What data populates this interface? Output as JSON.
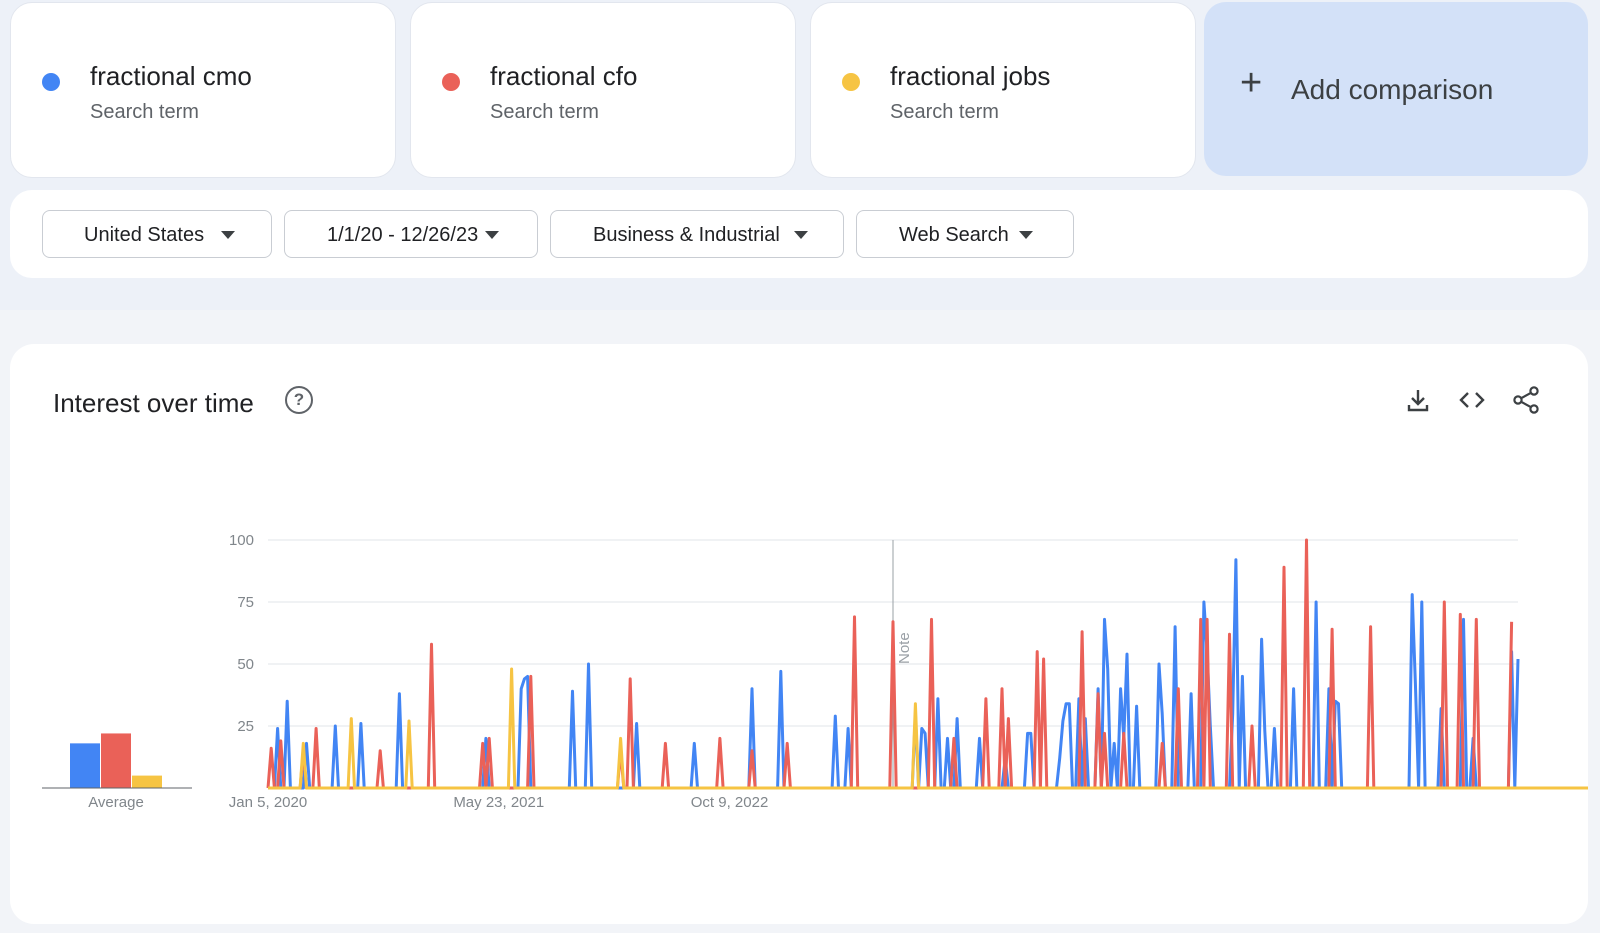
{
  "terms": [
    {
      "name": "fractional cmo",
      "sub": "Search term",
      "color": "#4285f4"
    },
    {
      "name": "fractional cfo",
      "sub": "Search term",
      "color": "#ea6158"
    },
    {
      "name": "fractional jobs",
      "sub": "Search term",
      "color": "#f6c443"
    }
  ],
  "add_comparison": {
    "label": "Add comparison",
    "icon": "plus-icon"
  },
  "filters": {
    "region": "United States",
    "date_range": "1/1/20 - 12/26/23",
    "category": "Business & Industrial",
    "search_type": "Web Search"
  },
  "interest": {
    "title": "Interest over time",
    "icons": [
      "help-icon",
      "download-icon",
      "embed-icon",
      "share-icon"
    ],
    "average_label": "Average",
    "note_label": "Note"
  },
  "chart_data": {
    "type": "line",
    "title": "Interest over time",
    "ylim": [
      0,
      100
    ],
    "yticks": [
      25,
      50,
      75,
      100
    ],
    "xtick_labels": [
      "Jan 5, 2020",
      "May 23, 2021",
      "Oct 9, 2022"
    ],
    "xtick_weeks": [
      0,
      72,
      144
    ],
    "grid": true,
    "averages": [
      {
        "name": "fractional cmo",
        "value": 18
      },
      {
        "name": "fractional cfo",
        "value": 22
      },
      {
        "name": "fractional jobs",
        "value": 5
      }
    ],
    "series": [
      {
        "name": "fractional cmo",
        "color": "#4285f4",
        "values": [
          0,
          0,
          0,
          24,
          0,
          0,
          35,
          0,
          0,
          0,
          0,
          0,
          18,
          0,
          0,
          0,
          0,
          0,
          0,
          0,
          0,
          25,
          0,
          0,
          0,
          0,
          0,
          0,
          0,
          26,
          0,
          0,
          0,
          0,
          0,
          0,
          0,
          0,
          0,
          0,
          0,
          38,
          0,
          0,
          0,
          0,
          0,
          0,
          0,
          0,
          0,
          0,
          0,
          0,
          0,
          0,
          0,
          0,
          0,
          0,
          0,
          0,
          0,
          0,
          0,
          0,
          0,
          0,
          20,
          0,
          0,
          0,
          0,
          0,
          0,
          0,
          0,
          0,
          0,
          40,
          44,
          45,
          0,
          0,
          0,
          0,
          0,
          0,
          0,
          0,
          0,
          0,
          0,
          0,
          0,
          39,
          0,
          0,
          0,
          0,
          50,
          0,
          0,
          0,
          0,
          0,
          0,
          0,
          0,
          0,
          0,
          0,
          0,
          0,
          0,
          26,
          0,
          0,
          0,
          0,
          0,
          0,
          0,
          0,
          0,
          0,
          0,
          0,
          0,
          0,
          0,
          0,
          0,
          18,
          0,
          0,
          0,
          0,
          0,
          0,
          0,
          0,
          0,
          0,
          0,
          0,
          0,
          0,
          0,
          0,
          0,
          40,
          0,
          0,
          0,
          0,
          0,
          0,
          0,
          0,
          47,
          0,
          0,
          0,
          0,
          0,
          0,
          0,
          0,
          0,
          0,
          0,
          0,
          0,
          0,
          0,
          0,
          29,
          0,
          0,
          0,
          24,
          0,
          0,
          0,
          0,
          0,
          0,
          0,
          0,
          0,
          0,
          0,
          0,
          0,
          0,
          0,
          0,
          0,
          0,
          0,
          0,
          30,
          0,
          24,
          22,
          0,
          0,
          0,
          36,
          0,
          0,
          20,
          0,
          0,
          28,
          0,
          0,
          0,
          0,
          0,
          0,
          20,
          0,
          0,
          0,
          0,
          0,
          0,
          0,
          12,
          0,
          0,
          0,
          0,
          0,
          0,
          22,
          22,
          0,
          0,
          0,
          0,
          0,
          0,
          0,
          0,
          12,
          27,
          34,
          34,
          0,
          0,
          36,
          0,
          28,
          0,
          0,
          0,
          40,
          0,
          68,
          48,
          0,
          18,
          0,
          40,
          20,
          54,
          0,
          0,
          33,
          0,
          0,
          0,
          0,
          0,
          0,
          50,
          30,
          0,
          0,
          0,
          65,
          0,
          0,
          0,
          0,
          38,
          0,
          0,
          0,
          75,
          55,
          25,
          0,
          0,
          0,
          0,
          0,
          0,
          30,
          92,
          0,
          45,
          0,
          0,
          0,
          0,
          0,
          60,
          23,
          0,
          0,
          24,
          0,
          0,
          0,
          0,
          0,
          40,
          0,
          0,
          0,
          0,
          0,
          0,
          75,
          0,
          0,
          0,
          40,
          0,
          35,
          34,
          0,
          0,
          0,
          0,
          0,
          0,
          0,
          0,
          0,
          0,
          0,
          0,
          0,
          0,
          0,
          0,
          0,
          0,
          0,
          0,
          0,
          0,
          78,
          42,
          0,
          75,
          0,
          0,
          0,
          0,
          0,
          32,
          0,
          0,
          0,
          0,
          0,
          0,
          68,
          0,
          0,
          20,
          0,
          0,
          0,
          0,
          0,
          0,
          0,
          0,
          0,
          0,
          0,
          55,
          0,
          52
        ]
      },
      {
        "name": "fractional cfo",
        "color": "#ea6158",
        "values": [
          0,
          16,
          0,
          0,
          19,
          0,
          0,
          0,
          0,
          0,
          0,
          15,
          0,
          0,
          0,
          24,
          0,
          0,
          0,
          0,
          0,
          0,
          0,
          0,
          0,
          0,
          0,
          0,
          0,
          0,
          0,
          0,
          0,
          0,
          0,
          15,
          0,
          0,
          0,
          0,
          0,
          0,
          0,
          0,
          0,
          0,
          0,
          0,
          0,
          0,
          0,
          58,
          0,
          0,
          0,
          0,
          0,
          0,
          0,
          0,
          0,
          0,
          0,
          0,
          0,
          0,
          0,
          18,
          0,
          20,
          0,
          0,
          0,
          0,
          0,
          0,
          0,
          0,
          0,
          0,
          0,
          0,
          45,
          0,
          0,
          0,
          0,
          0,
          0,
          0,
          0,
          0,
          0,
          0,
          0,
          0,
          0,
          0,
          0,
          0,
          0,
          0,
          0,
          0,
          0,
          0,
          0,
          0,
          0,
          0,
          15,
          0,
          0,
          44,
          0,
          0,
          0,
          0,
          0,
          0,
          0,
          0,
          0,
          0,
          18,
          0,
          0,
          0,
          0,
          0,
          0,
          0,
          0,
          0,
          0,
          0,
          0,
          0,
          0,
          0,
          0,
          20,
          0,
          0,
          0,
          0,
          0,
          0,
          0,
          0,
          0,
          15,
          0,
          0,
          0,
          0,
          0,
          0,
          0,
          0,
          0,
          0,
          18,
          0,
          0,
          0,
          0,
          0,
          0,
          0,
          0,
          0,
          0,
          0,
          0,
          0,
          0,
          0,
          0,
          0,
          0,
          0,
          0,
          69,
          0,
          0,
          0,
          0,
          0,
          0,
          0,
          0,
          0,
          0,
          0,
          67,
          0,
          0,
          0,
          0,
          0,
          0,
          0,
          0,
          0,
          0,
          0,
          68,
          0,
          0,
          0,
          0,
          0,
          0,
          20,
          0,
          0,
          0,
          0,
          0,
          0,
          0,
          0,
          0,
          36,
          0,
          0,
          0,
          0,
          40,
          0,
          28,
          0,
          0,
          0,
          0,
          0,
          0,
          0,
          0,
          55,
          0,
          52,
          0,
          0,
          0,
          0,
          0,
          0,
          0,
          0,
          0,
          0,
          0,
          63,
          0,
          0,
          0,
          0,
          38,
          0,
          22,
          0,
          0,
          0,
          0,
          0,
          22,
          0,
          0,
          0,
          0,
          0,
          0,
          0,
          0,
          0,
          0,
          0,
          18,
          0,
          0,
          0,
          0,
          40,
          0,
          0,
          0,
          0,
          0,
          0,
          68,
          0,
          68,
          0,
          0,
          0,
          0,
          0,
          0,
          62,
          0,
          0,
          0,
          0,
          0,
          0,
          25,
          0,
          0,
          0,
          0,
          0,
          0,
          0,
          0,
          0,
          89,
          0,
          0,
          0,
          0,
          0,
          0,
          100,
          0,
          0,
          0,
          0,
          0,
          0,
          0,
          64,
          0,
          0,
          0,
          0,
          0,
          0,
          0,
          0,
          0,
          0,
          0,
          65,
          0,
          0,
          0,
          0,
          0,
          0,
          0,
          0,
          0,
          0,
          0,
          0,
          0,
          0,
          0,
          0,
          0,
          0,
          0,
          0,
          0,
          0,
          75,
          0,
          0,
          0,
          0,
          70,
          0,
          0,
          0,
          0,
          68,
          0,
          0,
          0,
          0,
          0,
          0,
          0,
          0,
          0,
          0,
          67
        ]
      },
      {
        "name": "fractional jobs",
        "color": "#f6c443",
        "values": [
          0,
          0,
          0,
          0,
          0,
          0,
          0,
          0,
          0,
          0,
          0,
          18,
          0,
          0,
          0,
          0,
          0,
          0,
          0,
          0,
          0,
          0,
          0,
          0,
          0,
          0,
          28,
          0,
          0,
          0,
          0,
          0,
          0,
          0,
          0,
          0,
          0,
          0,
          0,
          0,
          0,
          0,
          0,
          0,
          27,
          0,
          0,
          0,
          0,
          0,
          0,
          0,
          0,
          0,
          0,
          0,
          0,
          0,
          0,
          0,
          0,
          0,
          0,
          0,
          0,
          0,
          0,
          0,
          0,
          0,
          0,
          0,
          0,
          0,
          0,
          0,
          48,
          0,
          0,
          0,
          0,
          0,
          0,
          0,
          0,
          0,
          0,
          0,
          0,
          0,
          0,
          0,
          0,
          0,
          0,
          0,
          0,
          0,
          0,
          0,
          0,
          0,
          0,
          0,
          0,
          0,
          0,
          0,
          0,
          0,
          20,
          0,
          0,
          0,
          0,
          0,
          0,
          0,
          0,
          0,
          0,
          0,
          0,
          0,
          0,
          0,
          0,
          0,
          0,
          0,
          0,
          0,
          0,
          0,
          0,
          0,
          0,
          0,
          0,
          0,
          0,
          0,
          0,
          0,
          0,
          0,
          0,
          0,
          0,
          0,
          0,
          0,
          0,
          0,
          0,
          0,
          0,
          0,
          0,
          0,
          0,
          0,
          0,
          0,
          0,
          0,
          0,
          0,
          0,
          0,
          0,
          0,
          0,
          0,
          0,
          0,
          0,
          0,
          0,
          0,
          0,
          0,
          0,
          0,
          0,
          0,
          0,
          0,
          0,
          0,
          0,
          0,
          0,
          0,
          0,
          0,
          0,
          0,
          0,
          0,
          0,
          0,
          34,
          0,
          0,
          0,
          0,
          0,
          0,
          0,
          0,
          0,
          0,
          0,
          0,
          0,
          0,
          0,
          0,
          0,
          0,
          0,
          0,
          0,
          0,
          0,
          0,
          0,
          0,
          0,
          0,
          0,
          0,
          0,
          0,
          0,
          0,
          0,
          0,
          0,
          0,
          0,
          0,
          0,
          0,
          0,
          0,
          0,
          0,
          0,
          0,
          0,
          0,
          0,
          0,
          0,
          0,
          0,
          0,
          0,
          0,
          0,
          0,
          0,
          0,
          0,
          0,
          0,
          0,
          0,
          0,
          0,
          0,
          0,
          0,
          0,
          0,
          0,
          0,
          0,
          0,
          0,
          0,
          0,
          0,
          0,
          0,
          0,
          0,
          0,
          0,
          0,
          0,
          0,
          0,
          0,
          0,
          0,
          0,
          0,
          0,
          0,
          0,
          0,
          0,
          0,
          0,
          0,
          0,
          0,
          0,
          0,
          0,
          0,
          0,
          0,
          0,
          0,
          0,
          0,
          0,
          0,
          0,
          0,
          0,
          0,
          0,
          0,
          0,
          0,
          0,
          0,
          0,
          0,
          0,
          0,
          0,
          0,
          0,
          0,
          0,
          0,
          0,
          0,
          0,
          0,
          0,
          0,
          0,
          0,
          0,
          0,
          0,
          0,
          0,
          0,
          0,
          0,
          0,
          0,
          0,
          0,
          0,
          0,
          0,
          0,
          0,
          0,
          0,
          0,
          0,
          0,
          0,
          0,
          0,
          0,
          0,
          0,
          0,
          0,
          0,
          0,
          0,
          0,
          0,
          0,
          0,
          0,
          0,
          0,
          0,
          0,
          0,
          0,
          0,
          0,
          0,
          0,
          0,
          0,
          0,
          0,
          0,
          0,
          0,
          0,
          0,
          0,
          0,
          0,
          0,
          0,
          0,
          0,
          0,
          0,
          0,
          0,
          0,
          0,
          0,
          0,
          0,
          0,
          0,
          0,
          0,
          0,
          0,
          0,
          0,
          0,
          0,
          0,
          0,
          0,
          0,
          0,
          0,
          0,
          0,
          0,
          0,
          0,
          0,
          0,
          0,
          0,
          0,
          0,
          0,
          0,
          0
        ]
      }
    ]
  }
}
